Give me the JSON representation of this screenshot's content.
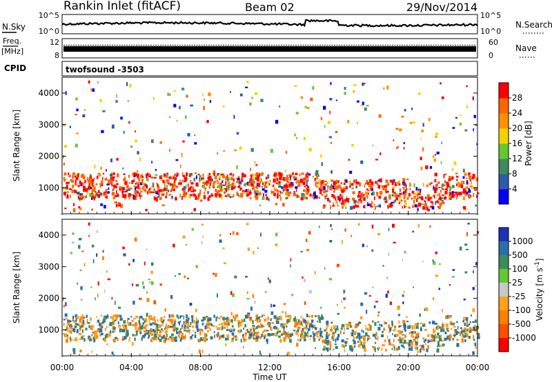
{
  "header": {
    "station": "Rankin Inlet (fitACF)",
    "beam": "Beam 02",
    "date": "29/Nov/2014"
  },
  "top_panel": {
    "left_label": "N.Sky",
    "right_label": "N.Search",
    "left_ticks": [
      "10^5",
      "10^0"
    ],
    "right_ticks": [
      "10^5",
      "10^0"
    ]
  },
  "freq_panel": {
    "left_label_1": "Freq.",
    "left_label_2": "[MHz]",
    "left_ticks": [
      "12",
      "8"
    ],
    "right_label": "Nave",
    "right_ticks": [
      "60",
      "0"
    ]
  },
  "cpid": {
    "label": "CPID",
    "value": "twofsound -3503"
  },
  "x_axis": {
    "label": "Time UT",
    "ticks": [
      "00:00",
      "04:00",
      "08:00",
      "12:00",
      "16:00",
      "20:00",
      "00:00"
    ],
    "range_hours": [
      0,
      24
    ]
  },
  "chart_data": [
    {
      "type": "heatmap",
      "quantity": "power",
      "ylabel": "Slant Range [km]",
      "yticks": [
        "1000",
        "2000",
        "3000",
        "4000"
      ],
      "ylim": [
        180,
        4500
      ],
      "colorbar_label": "Power [dB]",
      "colorbar_ticks": [
        "4",
        "8",
        "12",
        "16",
        "20",
        "24",
        "28"
      ],
      "colorbar_range": [
        0,
        32
      ],
      "colorbar_colors": [
        "#0000ff",
        "#2c5ca8",
        "#3f8a5f",
        "#64c832",
        "#f4d200",
        "#ff9100",
        "#ff6400",
        "#ff0000"
      ]
    },
    {
      "type": "heatmap",
      "quantity": "velocity",
      "ylabel": "Slant Range [km]",
      "yticks": [
        "1000",
        "2000",
        "3000",
        "4000"
      ],
      "ylim": [
        180,
        4500
      ],
      "colorbar_label": "Velocity [m s^-1]",
      "colorbar_ticks": [
        "1000",
        "500",
        "100",
        "25",
        "-25",
        "-100",
        "-500",
        "-1000"
      ],
      "colorbar_colors": [
        "#1e32b4",
        "#2a70a8",
        "#3f8a5f",
        "#64c832",
        "#c8c8c8",
        "#ffa020",
        "#ff8000",
        "#ff5000",
        "#ff0000"
      ]
    }
  ]
}
